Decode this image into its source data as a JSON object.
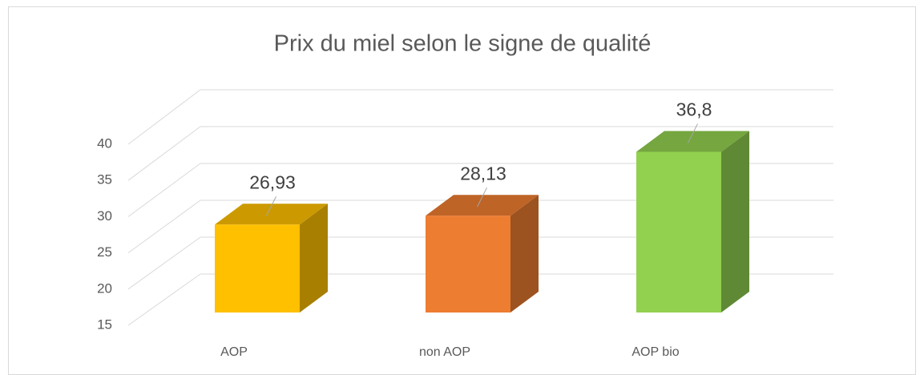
{
  "chart_data": {
    "type": "bar3d",
    "title": "Prix du miel selon le signe de qualité",
    "categories": [
      "AOP",
      "non AOP",
      "AOP bio"
    ],
    "values": [
      26.93,
      28.13,
      36.8
    ],
    "value_labels": [
      "26,93",
      "28,13",
      "36,8"
    ],
    "colors": [
      "#ffc000",
      "#ed7d31",
      "#92d050"
    ],
    "ylim": [
      15,
      40
    ],
    "yticks": [
      15,
      20,
      25,
      30,
      35,
      40
    ],
    "grid": true
  }
}
